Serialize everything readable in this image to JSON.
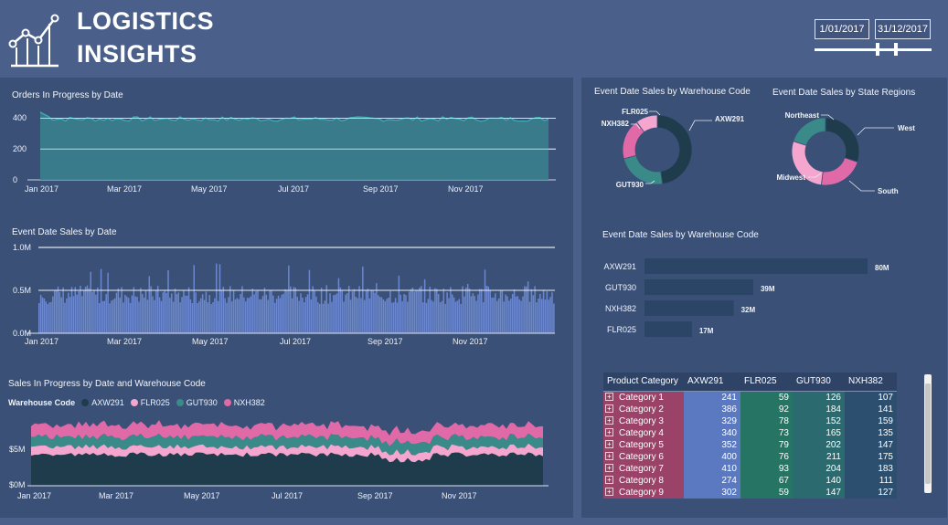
{
  "header": {
    "title_line1": "LOGISTICS",
    "title_line2": "INSIGHTS",
    "logo_icon": "line-chart-icon",
    "date_start": "1/01/2017",
    "date_end": "31/12/2017",
    "date_slider": {
      "start_fraction": 0.52,
      "end_fraction": 0.68
    }
  },
  "colors": {
    "background": "#4a5f8a",
    "panel": "#3a5077",
    "teal": "#3b8a8a",
    "blue": "#5b79c0",
    "pink": "#e06aa8",
    "light_pink": "#f4a6cf",
    "dark": "#1f3c4c"
  },
  "orders_chart": {
    "title": "Orders In Progress by Date",
    "y_ticks": [
      "400",
      "200",
      "0"
    ],
    "x_ticks": [
      "Jan 2017",
      "Mar 2017",
      "May 2017",
      "Jul 2017",
      "Sep 2017",
      "Nov 2017"
    ],
    "ylim": [
      0,
      480
    ],
    "typical_value": 395
  },
  "sales_chart": {
    "title": "Event Date Sales by Date",
    "y_ticks": [
      "1.0M",
      "0.5M",
      "0.0M"
    ],
    "x_ticks": [
      "Jan 2017",
      "Mar 2017",
      "May 2017",
      "Jul 2017",
      "Sep 2017",
      "Nov 2017"
    ],
    "ylim": [
      0,
      1000000
    ]
  },
  "stacked_chart": {
    "title": "Sales In Progress by Date and Warehouse Code",
    "legend_title": "Warehouse Code",
    "legend": [
      {
        "name": "AXW291",
        "color": "#1f3c4c"
      },
      {
        "name": "FLR025",
        "color": "#f4a6cf"
      },
      {
        "name": "GUT930",
        "color": "#3b8a8a"
      },
      {
        "name": "NXH382",
        "color": "#e06aa8"
      }
    ],
    "y_ticks": [
      "$5M",
      "$0M"
    ],
    "x_ticks": [
      "Jan 2017",
      "Mar 2017",
      "May 2017",
      "Jul 2017",
      "Sep 2017",
      "Nov 2017"
    ]
  },
  "donut_warehouse": {
    "title": "Event Date Sales by Warehouse Code",
    "slices": [
      {
        "name": "AXW291",
        "value": 80,
        "color": "#1f3c4c"
      },
      {
        "name": "GUT930",
        "value": 39,
        "color": "#3b8a8a"
      },
      {
        "name": "NXH382",
        "value": 32,
        "color": "#e06aa8"
      },
      {
        "name": "FLR025",
        "value": 17,
        "color": "#f4a6cf"
      }
    ]
  },
  "donut_region": {
    "title": "Event Date Sales by State Regions",
    "slices": [
      {
        "name": "West",
        "value": 30,
        "color": "#1f3c4c"
      },
      {
        "name": "South",
        "value": 22,
        "color": "#e06aa8"
      },
      {
        "name": "Midwest",
        "value": 28,
        "color": "#f4a6cf"
      },
      {
        "name": "Northeast",
        "value": 20,
        "color": "#3b8a8a"
      }
    ]
  },
  "bar_chart": {
    "title": "Event Date Sales by Warehouse Code",
    "max": 80,
    "bars": [
      {
        "name": "AXW291",
        "value": 80,
        "label": "80M"
      },
      {
        "name": "GUT930",
        "value": 39,
        "label": "39M"
      },
      {
        "name": "NXH382",
        "value": 32,
        "label": "32M"
      },
      {
        "name": "FLR025",
        "value": 17,
        "label": "17M"
      }
    ]
  },
  "matrix": {
    "headers": [
      "Product Category",
      "AXW291",
      "FLR025",
      "GUT930",
      "NXH382"
    ],
    "rows": [
      {
        "category": "Category 1",
        "values": [
          "241",
          "59",
          "126",
          "107"
        ]
      },
      {
        "category": "Category 2",
        "values": [
          "386",
          "92",
          "184",
          "141"
        ]
      },
      {
        "category": "Category 3",
        "values": [
          "329",
          "78",
          "152",
          "159"
        ]
      },
      {
        "category": "Category 4",
        "values": [
          "340",
          "73",
          "165",
          "135"
        ]
      },
      {
        "category": "Category 5",
        "values": [
          "352",
          "79",
          "202",
          "147"
        ]
      },
      {
        "category": "Category 6",
        "values": [
          "400",
          "76",
          "211",
          "175"
        ]
      },
      {
        "category": "Category 7",
        "values": [
          "410",
          "93",
          "204",
          "183"
        ]
      },
      {
        "category": "Category 8",
        "values": [
          "274",
          "67",
          "140",
          "111"
        ]
      },
      {
        "category": "Category 9",
        "values": [
          "302",
          "59",
          "147",
          "127"
        ]
      }
    ]
  }
}
